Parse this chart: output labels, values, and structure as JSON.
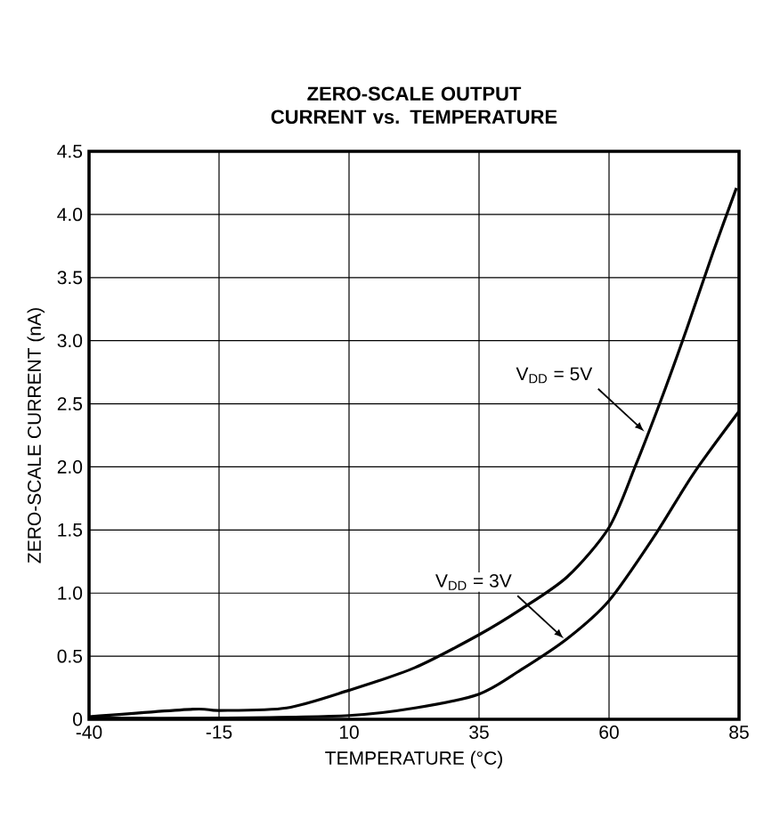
{
  "chart_data": {
    "type": "line",
    "title": "ZERO-SCALE OUTPUT CURRENT vs. TEMPERATURE",
    "xlabel": "TEMPERATURE (°C)",
    "ylabel": "ZERO-SCALE CURRENT (nA)",
    "xlim": [
      -40,
      85
    ],
    "xticks": [
      -40,
      -15,
      10,
      35,
      60,
      85
    ],
    "ylim": [
      0,
      4.5
    ],
    "yticks": [
      0,
      0.5,
      {
        "value": 1,
        "label": "1.0"
      },
      1.5,
      {
        "value": 2,
        "label": "2.0"
      },
      2.5,
      {
        "value": 3,
        "label": "3.0"
      },
      3.5,
      {
        "value": 4,
        "label": "4.0"
      },
      4.5
    ],
    "grid": true,
    "marker": "none",
    "line_style": "solid",
    "annotations": [
      {
        "text": "V$_{DD}$ = 5V",
        "x": 66.8,
        "y": 2.28
      },
      {
        "text": "V$_{DD}$ = 3V",
        "x": 51.3,
        "y": 0.64
      }
    ],
    "series": [
      {
        "color": "#000000",
        "x": [
          -40,
          -20,
          -15,
          -2,
          10,
          22.7,
          35,
          43,
          52,
          60,
          65,
          70,
          75,
          80,
          84.5
        ],
        "values": [
          0.02,
          0.08,
          0.07,
          0.09,
          0.23,
          0.41,
          0.67,
          0.87,
          1.13,
          1.52,
          2.0,
          2.53,
          3.1,
          3.7,
          4.21
        ]
      },
      {
        "color": "#000000",
        "x": [
          -40,
          -15,
          10,
          22.7,
          35,
          43,
          52,
          60,
          68.7,
          76.3,
          85
        ],
        "values": [
          0.01,
          0.01,
          0.03,
          0.09,
          0.2,
          0.39,
          0.64,
          0.94,
          1.45,
          1.95,
          2.44
        ]
      }
    ]
  }
}
